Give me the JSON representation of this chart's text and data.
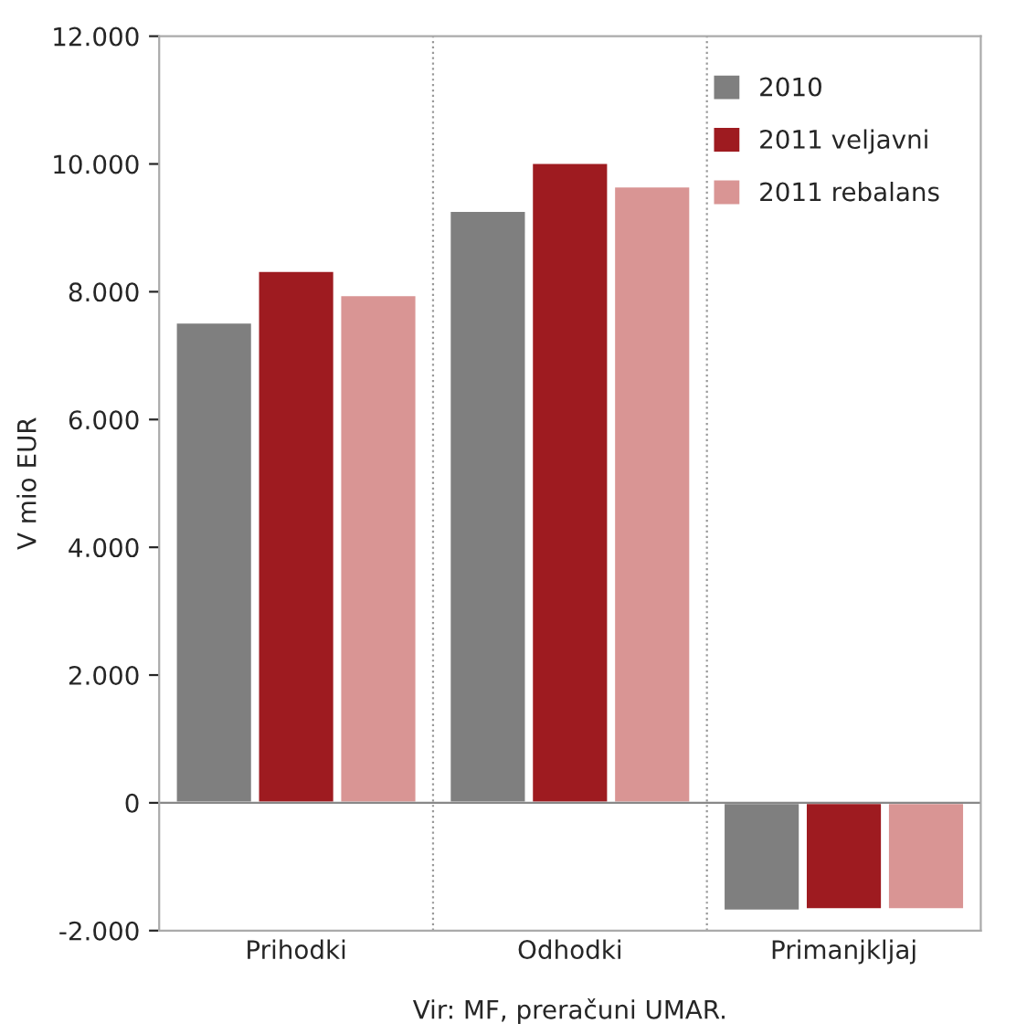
{
  "chart_data": {
    "type": "bar",
    "ylabel": "V mio EUR",
    "categories": [
      "Prihodki",
      "Odhodki",
      "Primanjkljaj"
    ],
    "series": [
      {
        "name": "2010",
        "color": "#7f7f7f",
        "values": [
          7520,
          9270,
          -1690
        ]
      },
      {
        "name": "2011 veljavni",
        "color": "#9e1b20",
        "values": [
          8330,
          10020,
          -1670
        ]
      },
      {
        "name": "2011 rebalans",
        "color": "#d99594",
        "values": [
          7950,
          9650,
          -1670
        ]
      }
    ],
    "ylim": [
      -2000,
      12000
    ],
    "yticks": [
      {
        "value": -2000,
        "label": "-2.000"
      },
      {
        "value": 0,
        "label": "0"
      },
      {
        "value": 2000,
        "label": "2.000"
      },
      {
        "value": 4000,
        "label": "4.000"
      },
      {
        "value": 6000,
        "label": "6.000"
      },
      {
        "value": 8000,
        "label": "8.000"
      },
      {
        "value": 10000,
        "label": "10.000"
      },
      {
        "value": 12000,
        "label": "12.000"
      }
    ],
    "grid": "x",
    "legend": "top right",
    "annotations": [
      "Vir: MF, preračuni UMAR."
    ]
  }
}
